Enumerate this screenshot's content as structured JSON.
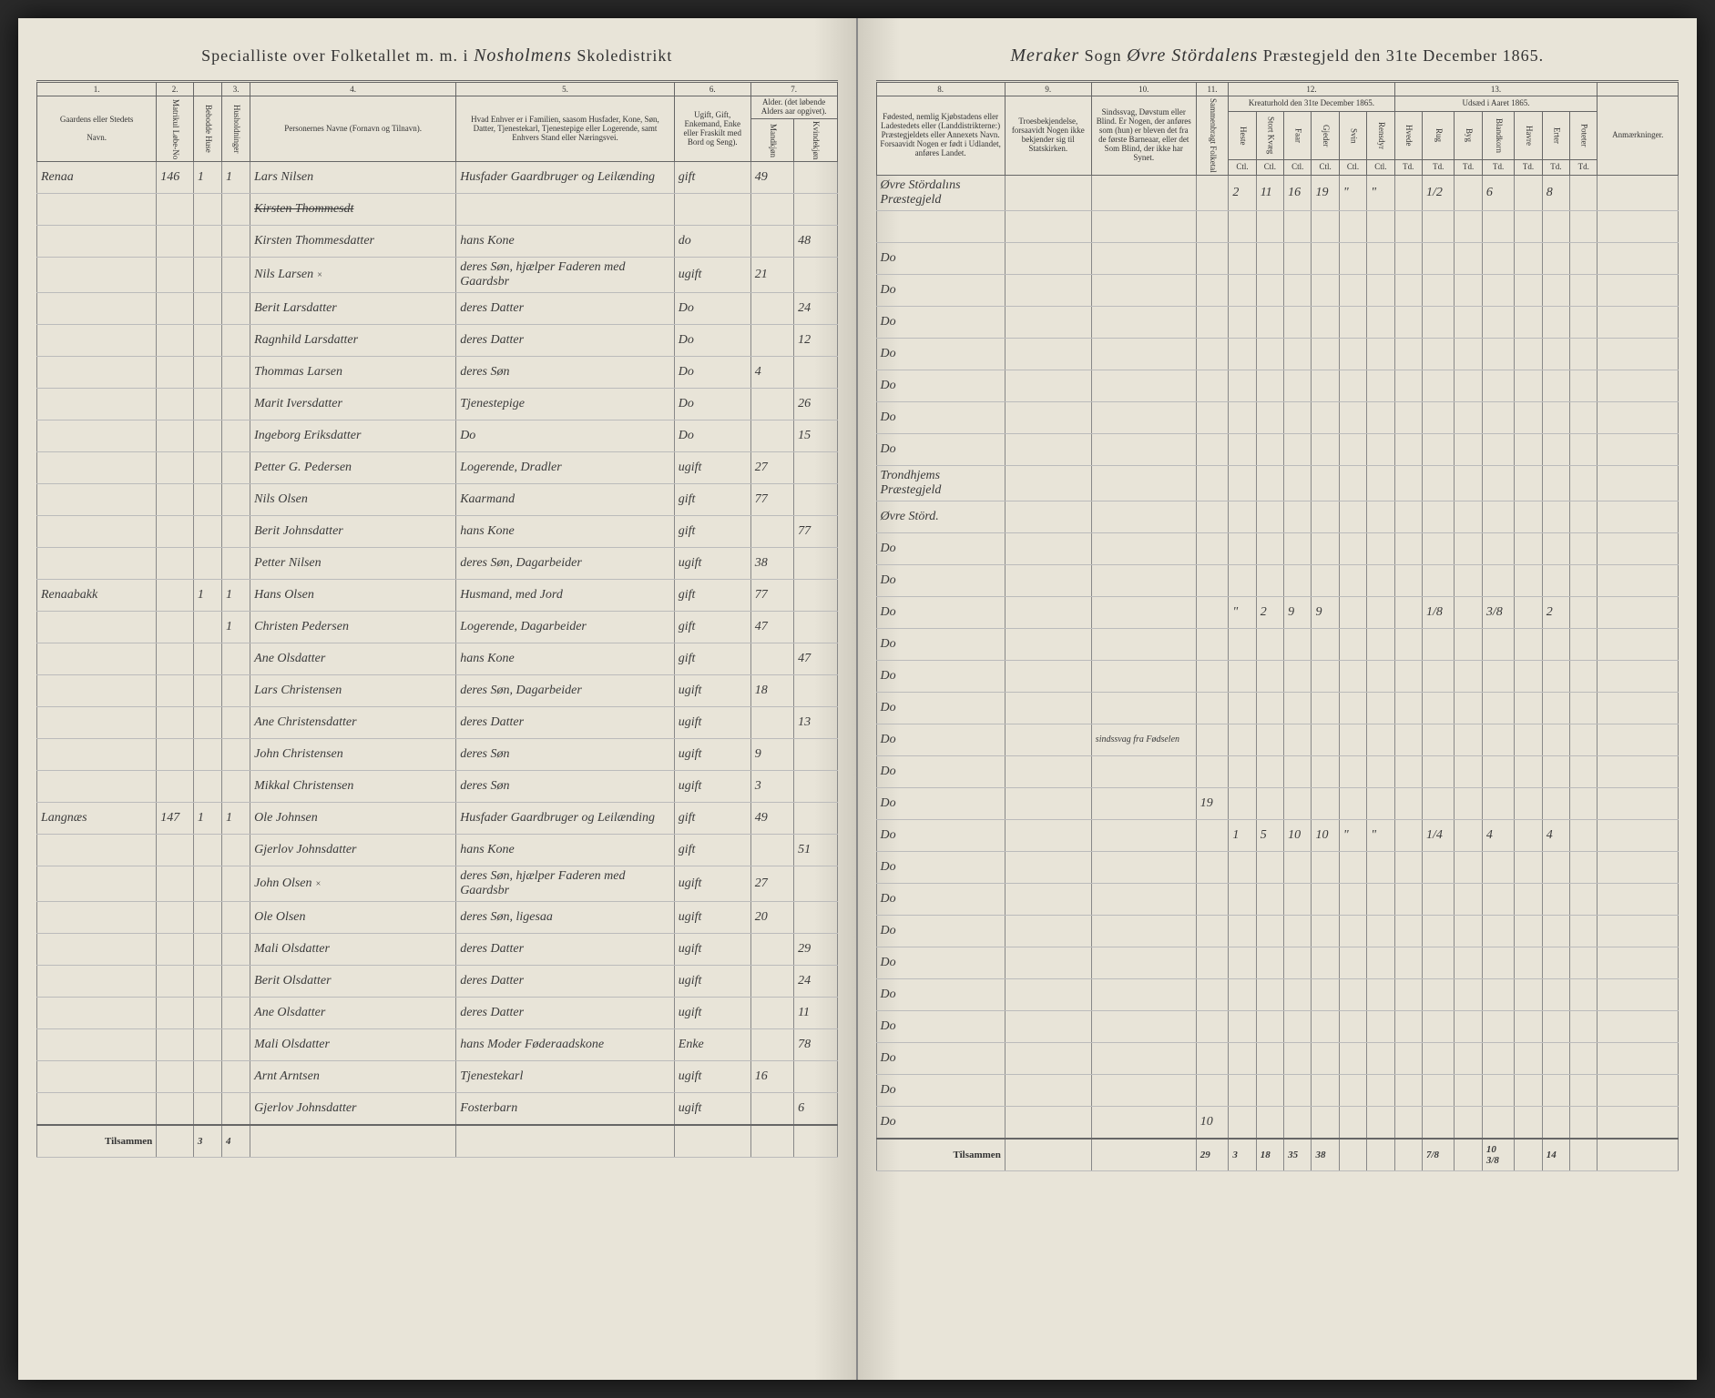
{
  "header": {
    "left_prefix": "Specialliste over Folketallet m. m. i",
    "left_place": "Nosholmens",
    "left_suffix": "Skoledistrikt",
    "right_sogn": "Meraker",
    "right_sogn_label": "Sogn",
    "right_praeste": "Øvre Stördalens",
    "right_suffix": "Præstegjeld den 31te December 1865."
  },
  "columns_left": {
    "c1": "1.",
    "c2": "2.",
    "c3": "3.",
    "c4": "4.",
    "c5": "5.",
    "c6": "6.",
    "c7": "7.",
    "gaard": "Gaardens eller Stedets",
    "navn": "Navn.",
    "matr": "Matrikul Løbe-No",
    "beb": "Bebodde Huse",
    "hus": "Husholdninger",
    "personer": "Personernes Navne (Fornavn og Tilnavn).",
    "stand": "Hvad Enhver er i Familien, saasom Husfader, Kone, Søn, Datter, Tjenestekarl, Tjenestepige eller Logerende, samt Enhvers Stand eller Næringsvei.",
    "gift": "Ugift, Gift, Enkemand, Enke eller Fraskilt med Bord og Seng).",
    "alder": "Alder. (det løbende Alders aar opgivet).",
    "mand": "Mandkjøn",
    "kvind": "Kvindekjøn"
  },
  "columns_right": {
    "c8": "8.",
    "c9": "9.",
    "c10": "10.",
    "c11": "11.",
    "c12": "12.",
    "c13": "13.",
    "fode": "Fødested, nemlig Kjøbstadens eller Ladestedets eller (Landdistrikterne:) Præstegjeldets eller Annexets Navn. Forsaavidt Nogen er født i Udlandet, anføres Landet.",
    "tro": "Troesbekjendelse, forsaavidt Nogen ikke bekjender sig til Statskirken.",
    "sind": "Sindssvag, Døvstum eller Blind. Er Nogen, der anføres som (hun) er bleven det fra de første Barneaar, eller det Som Blind, der ikke har Synet.",
    "sam": "Sammenbragt Folketal",
    "kreat": "Kreaturhold den 31te December 1865.",
    "udsad": "Udsæd i Aaret 1865.",
    "anm": "Anmærkninger.",
    "k1": "Heste",
    "k2": "Stort Kvæg",
    "k3": "Faar",
    "k4": "Gjeder",
    "k5": "Svin",
    "k6": "Rensdyr",
    "u1": "Hvede",
    "u2": "Rug",
    "u3": "Byg",
    "u4": "Blandkorn",
    "u5": "Havre",
    "u6": "Erter",
    "u7": "Poteter",
    "ctl": "Ctl.",
    "td": "Td."
  },
  "rows": [
    {
      "gaard": "Renaa",
      "matr": "146",
      "beb": "1",
      "hus": "1",
      "navn": "Lars Nilsen",
      "stand": "Husfader Gaardbruger og Leilænding",
      "gift": "gift",
      "alder_m": "49",
      "alder_k": "",
      "fode": "Øvre Stördalıns Præstegjeld",
      "kreat": [
        "2",
        "11",
        "16",
        "19",
        "\"",
        "\"",
        "",
        "1/2",
        "",
        "6",
        "",
        "8"
      ]
    },
    {
      "navn_strike": "Kirsten Thommesdt",
      "stand": "",
      "gift": "",
      "alder_m": "",
      "alder_k": "",
      "fode": ""
    },
    {
      "navn": "Kirsten Thommesdatter",
      "stand": "hans Kone",
      "gift": "do",
      "alder_m": "",
      "alder_k": "48",
      "fode": "Do"
    },
    {
      "navn": "Nils Larsen",
      "mark": "×",
      "stand": "deres Søn, hjælper Faderen med Gaardsbr",
      "gift": "ugift",
      "alder_m": "21",
      "alder_k": "",
      "fode": "Do"
    },
    {
      "navn": "Berit Larsdatter",
      "stand": "deres Datter",
      "gift": "Do",
      "alder_m": "",
      "alder_k": "24",
      "fode": "Do"
    },
    {
      "navn": "Ragnhild Larsdatter",
      "stand": "deres Datter",
      "gift": "Do",
      "alder_m": "",
      "alder_k": "12",
      "fode": "Do"
    },
    {
      "navn": "Thommas Larsen",
      "stand": "deres Søn",
      "gift": "Do",
      "alder_m": "4",
      "alder_k": "",
      "fode": "Do"
    },
    {
      "navn": "Marit Iversdatter",
      "stand": "Tjenestepige",
      "gift": "Do",
      "alder_m": "",
      "alder_k": "26",
      "fode": "Do"
    },
    {
      "navn": "Ingeborg Eriksdatter",
      "stand": "Do",
      "gift": "Do",
      "alder_m": "",
      "alder_k": "15",
      "fode": "Do"
    },
    {
      "navn": "Petter G. Pedersen",
      "stand": "Logerende, Dradler",
      "gift": "ugift",
      "alder_m": "27",
      "alder_k": "",
      "fode": "Trondhjems Præstegjeld"
    },
    {
      "navn": "Nils Olsen",
      "stand": "Kaarmand",
      "gift": "gift",
      "alder_m": "77",
      "alder_k": "",
      "fode": "Øvre Störd."
    },
    {
      "navn": "Berit Johnsdatter",
      "stand": "hans Kone",
      "gift": "gift",
      "alder_m": "",
      "alder_k": "77",
      "fode": "Do"
    },
    {
      "navn": "Petter Nilsen",
      "stand": "deres Søn, Dagarbeider",
      "gift": "ugift",
      "alder_m": "38",
      "alder_k": "",
      "fode": "Do"
    },
    {
      "gaard": "Renaabakk",
      "beb": "1",
      "hus": "1",
      "navn": "Hans Olsen",
      "stand": "Husmand, med Jord",
      "gift": "gift",
      "alder_m": "77",
      "alder_k": "",
      "fode": "Do",
      "kreat": [
        "\"",
        "2",
        "9",
        "9",
        "",
        "",
        "",
        "1/8",
        "",
        "3/8",
        "",
        "2"
      ]
    },
    {
      "hus": "1",
      "navn": "Christen Pedersen",
      "stand": "Logerende, Dagarbeider",
      "gift": "gift",
      "alder_m": "47",
      "alder_k": "",
      "fode": "Do"
    },
    {
      "navn": "Ane Olsdatter",
      "stand": "hans Kone",
      "gift": "gift",
      "alder_m": "",
      "alder_k": "47",
      "fode": "Do"
    },
    {
      "navn": "Lars Christensen",
      "stand": "deres Søn, Dagarbeider",
      "gift": "ugift",
      "alder_m": "18",
      "alder_k": "",
      "fode": "Do"
    },
    {
      "navn": "Ane Christensdatter",
      "stand": "deres Datter",
      "gift": "ugift",
      "alder_m": "",
      "alder_k": "13",
      "fode": "Do",
      "sind": "sindssvag fra Fødselen"
    },
    {
      "navn": "John Christensen",
      "stand": "deres Søn",
      "gift": "ugift",
      "alder_m": "9",
      "alder_k": "",
      "fode": "Do"
    },
    {
      "navn": "Mikkal Christensen",
      "stand": "deres Søn",
      "gift": "ugift",
      "alder_m": "3",
      "alder_k": "",
      "fode": "Do",
      "sam": "19"
    },
    {
      "gaard": "Langnæs",
      "matr": "147",
      "beb": "1",
      "hus": "1",
      "navn": "Ole Johnsen",
      "stand": "Husfader Gaardbruger og Leilænding",
      "gift": "gift",
      "alder_m": "49",
      "alder_k": "",
      "fode": "Do",
      "kreat": [
        "1",
        "5",
        "10",
        "10",
        "\"",
        "\"",
        "",
        "1/4",
        "",
        "4",
        "",
        "4"
      ]
    },
    {
      "navn": "Gjerlov Johnsdatter",
      "stand": "hans Kone",
      "gift": "gift",
      "alder_m": "",
      "alder_k": "51",
      "fode": "Do"
    },
    {
      "navn": "John Olsen",
      "mark": "×",
      "stand": "deres Søn, hjælper Faderen med Gaardsbr",
      "gift": "ugift",
      "alder_m": "27",
      "alder_k": "",
      "fode": "Do"
    },
    {
      "navn": "Ole Olsen",
      "stand": "deres Søn, ligesaa",
      "gift": "ugift",
      "alder_m": "20",
      "alder_k": "",
      "fode": "Do"
    },
    {
      "navn": "Mali Olsdatter",
      "stand": "deres Datter",
      "gift": "ugift",
      "alder_m": "",
      "alder_k": "29",
      "fode": "Do"
    },
    {
      "navn": "Berit Olsdatter",
      "stand": "deres Datter",
      "gift": "ugift",
      "alder_m": "",
      "alder_k": "24",
      "fode": "Do"
    },
    {
      "navn": "Ane Olsdatter",
      "stand": "deres Datter",
      "gift": "ugift",
      "alder_m": "",
      "alder_k": "11",
      "fode": "Do"
    },
    {
      "navn": "Mali Olsdatter",
      "stand": "hans Moder Føderaadskone",
      "gift": "Enke",
      "alder_m": "",
      "alder_k": "78",
      "fode": "Do"
    },
    {
      "navn": "Arnt Arntsen",
      "stand": "Tjenestekarl",
      "gift": "ugift",
      "alder_m": "16",
      "alder_k": "",
      "fode": "Do"
    },
    {
      "navn": "Gjerlov Johnsdatter",
      "stand": "Fosterbarn",
      "gift": "ugift",
      "alder_m": "",
      "alder_k": "6",
      "fode": "Do",
      "sam": "10"
    }
  ],
  "footer": {
    "label": "Tilsammen",
    "beb_sum": "3",
    "hus_sum": "4",
    "label_r": "Tilsammen",
    "sam": "29",
    "kreat_sums": [
      "3",
      "18",
      "35",
      "38",
      "",
      "",
      "",
      "7/8",
      "",
      "10 3/8",
      "",
      "14"
    ]
  }
}
